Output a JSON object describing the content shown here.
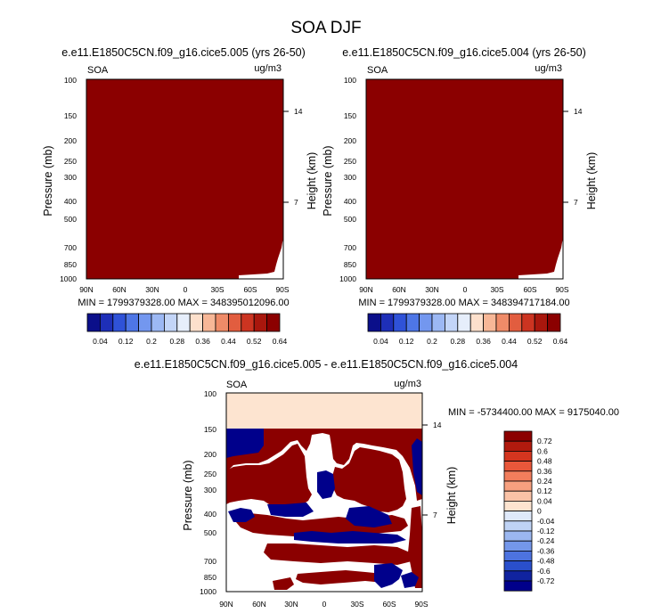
{
  "figure_title": "SOA DJF",
  "chart_data": [
    {
      "type": "heatmap",
      "title": "e.e11.E1850C5CN.f09_g16.cice5.005 (yrs 26-50)",
      "left_label": "SOA",
      "units": "ug/m3",
      "ylabel": "Pressure (mb)",
      "ylabel_right": "Height (km)",
      "x_ticks": [
        "90N",
        "60N",
        "30N",
        "0",
        "30S",
        "60S",
        "90S"
      ],
      "y_ticks": [
        "100",
        "150",
        "200",
        "250",
        "300",
        "400",
        "500",
        "700",
        "850",
        "1000"
      ],
      "y_ticks_right": [
        "14",
        "7"
      ],
      "min_max_text": "MIN = 1799379328.00  MAX = 348395012096.00",
      "field_description": "saturated above top contour (0.64) everywhere except near-surface southern polar corner",
      "colorbar_labels": [
        "0.04",
        "0.12",
        "0.2",
        "0.28",
        "0.36",
        "0.44",
        "0.52",
        "0.64"
      ],
      "colorbar_levels": [
        0.04,
        0.08,
        0.12,
        0.16,
        0.2,
        0.24,
        0.28,
        0.32,
        0.36,
        0.4,
        0.44,
        0.48,
        0.52,
        0.56,
        0.64
      ]
    },
    {
      "type": "heatmap",
      "title": "e.e11.E1850C5CN.f09_g16.cice5.004 (yrs 26-50)",
      "left_label": "SOA",
      "units": "ug/m3",
      "ylabel": "Pressure (mb)",
      "ylabel_right": "Height (km)",
      "x_ticks": [
        "90N",
        "60N",
        "30N",
        "0",
        "30S",
        "60S",
        "90S"
      ],
      "y_ticks": [
        "100",
        "150",
        "200",
        "250",
        "300",
        "400",
        "500",
        "700",
        "850",
        "1000"
      ],
      "y_ticks_right": [
        "14",
        "7"
      ],
      "min_max_text": "MIN = 1799379328.00  MAX = 348394717184.00",
      "colorbar_labels": [
        "0.04",
        "0.12",
        "0.2",
        "0.28",
        "0.36",
        "0.44",
        "0.52",
        "0.64"
      ]
    },
    {
      "type": "heatmap",
      "title": "e.e11.E1850C5CN.f09_g16.cice5.005 - e.e11.E1850C5CN.f09_g16.cice5.004",
      "left_label": "SOA",
      "units": "ug/m3",
      "ylabel": "Pressure (mb)",
      "ylabel_right": "Height (km)",
      "x_ticks": [
        "90N",
        "60N",
        "30N",
        "0",
        "30S",
        "60S",
        "90S"
      ],
      "y_ticks": [
        "100",
        "150",
        "200",
        "250",
        "300",
        "400",
        "500",
        "700",
        "850",
        "1000"
      ],
      "y_ticks_right": [
        "14",
        "7"
      ],
      "min_max_text": "MIN = -5734400.00  MAX = 9175040.00",
      "colorbar_labels": [
        "0.72",
        "0.6",
        "0.48",
        "0.36",
        "0.24",
        "0.12",
        "0.04",
        "0",
        "-0.04",
        "-0.12",
        "-0.24",
        "-0.36",
        "-0.48",
        "-0.6",
        "-0.72"
      ]
    }
  ],
  "colors": {
    "dark_red": "#8b0000",
    "dark_blue": "#00008b",
    "pale_peach": "#fde4d0",
    "white": "#ffffff"
  }
}
